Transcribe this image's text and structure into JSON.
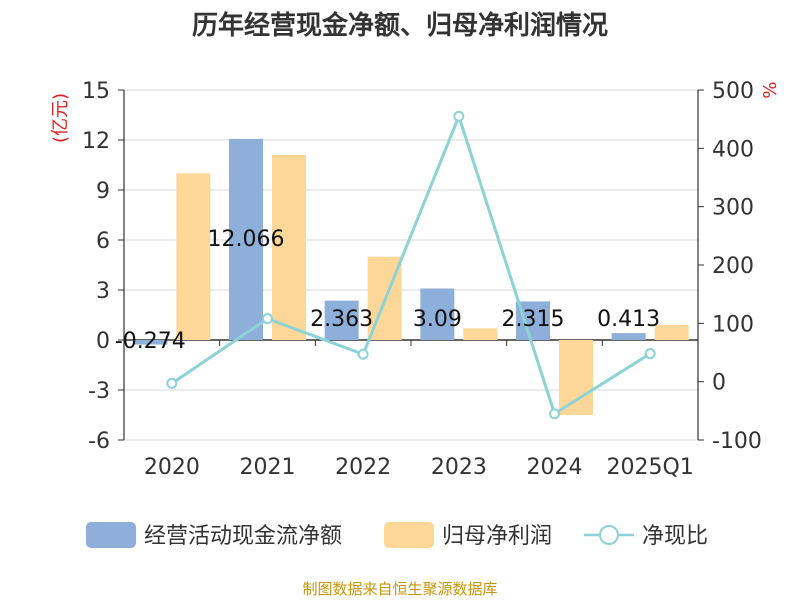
{
  "title": "历年经营现金净额、归母净利润情况",
  "source": "制图数据来自恒生聚源数据库",
  "left_axis_unit": "(亿元)",
  "right_axis_unit": "%",
  "colors": {
    "operating_cash": "#8eafd9",
    "net_profit": "#fdd797",
    "ratio": "#8cd2d7",
    "unit": "#e02020",
    "source": "#c8960a"
  },
  "chart_data": {
    "type": "bar",
    "categories": [
      "2020",
      "2021",
      "2022",
      "2023",
      "2024",
      "2025Q1"
    ],
    "series": [
      {
        "name": "经营活动现金流净额",
        "axis": "left",
        "kind": "bar",
        "values": [
          -0.274,
          12.066,
          2.363,
          3.09,
          2.315,
          0.413
        ],
        "labels": [
          "-0.274",
          "12.066",
          "2.363",
          "3.09",
          "2.315",
          "0.413"
        ]
      },
      {
        "name": "归母净利润",
        "axis": "left",
        "kind": "bar",
        "values": [
          10.0,
          11.1,
          5.0,
          0.7,
          -4.5,
          0.9
        ]
      },
      {
        "name": "净现比",
        "axis": "right",
        "kind": "line",
        "values": [
          -3,
          108,
          47,
          455,
          -55,
          48
        ]
      }
    ],
    "left_axis": {
      "min": -6,
      "max": 15,
      "ticks": [
        -6,
        -3,
        0,
        3,
        6,
        9,
        12,
        15
      ]
    },
    "right_axis": {
      "min": -100,
      "max": 500,
      "ticks": [
        -100,
        0,
        100,
        200,
        300,
        400,
        500
      ]
    },
    "legend": [
      "经营活动现金流净额",
      "归母净利润",
      "净现比"
    ],
    "legend_position": "bottom",
    "grid": true
  }
}
